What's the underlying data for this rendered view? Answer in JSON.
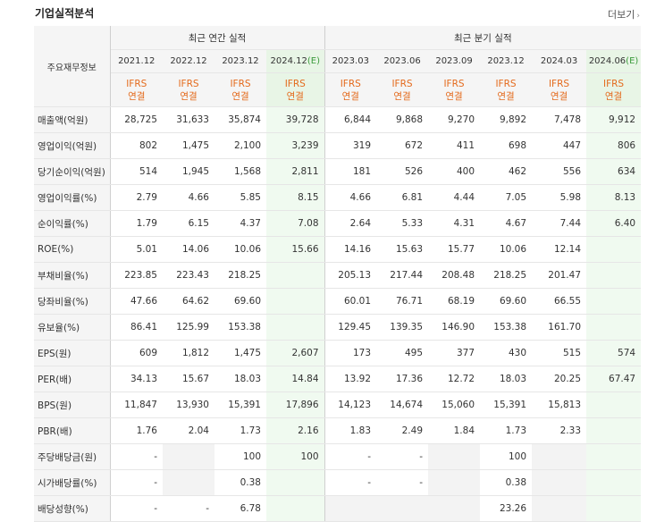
{
  "header": {
    "title": "기업실적분석",
    "more_label": "더보기"
  },
  "table": {
    "row_header_label": "주요재무정보",
    "group_annual": "최근 연간 실적",
    "group_quarter": "최근 분기 실적",
    "periods": [
      "2021.12",
      "2022.12",
      "2023.12",
      "2024.12",
      "2023.03",
      "2023.06",
      "2023.09",
      "2023.12",
      "2024.03",
      "2024.06"
    ],
    "estimate_suffix": "(E)",
    "ifrs_line1": "IFRS",
    "ifrs_line2": "연결",
    "rows": [
      {
        "label": "매출액(억원)",
        "values": [
          "28,725",
          "31,633",
          "35,874",
          "39,728",
          "6,844",
          "9,868",
          "9,270",
          "9,892",
          "7,478",
          "9,912"
        ]
      },
      {
        "label": "영업이익(억원)",
        "values": [
          "802",
          "1,475",
          "2,100",
          "3,239",
          "319",
          "672",
          "411",
          "698",
          "447",
          "806"
        ]
      },
      {
        "label": "당기순이익(억원)",
        "values": [
          "514",
          "1,945",
          "1,568",
          "2,811",
          "181",
          "526",
          "400",
          "462",
          "556",
          "634"
        ]
      },
      {
        "label": "영업이익률(%)",
        "values": [
          "2.79",
          "4.66",
          "5.85",
          "8.15",
          "4.66",
          "6.81",
          "4.44",
          "7.05",
          "5.98",
          "8.13"
        ]
      },
      {
        "label": "순이익률(%)",
        "values": [
          "1.79",
          "6.15",
          "4.37",
          "7.08",
          "2.64",
          "5.33",
          "4.31",
          "4.67",
          "7.44",
          "6.40"
        ]
      },
      {
        "label": "ROE(%)",
        "values": [
          "5.01",
          "14.06",
          "10.06",
          "15.66",
          "14.16",
          "15.63",
          "15.77",
          "10.06",
          "12.14",
          ""
        ]
      },
      {
        "label": "부채비율(%)",
        "values": [
          "223.85",
          "223.43",
          "218.25",
          "",
          "205.13",
          "217.44",
          "208.48",
          "218.25",
          "201.47",
          ""
        ]
      },
      {
        "label": "당좌비율(%)",
        "values": [
          "47.66",
          "64.62",
          "69.60",
          "",
          "60.01",
          "76.71",
          "68.19",
          "69.60",
          "66.55",
          ""
        ]
      },
      {
        "label": "유보율(%)",
        "values": [
          "86.41",
          "125.99",
          "153.38",
          "",
          "129.45",
          "139.35",
          "146.90",
          "153.38",
          "161.70",
          ""
        ]
      },
      {
        "label": "EPS(원)",
        "values": [
          "609",
          "1,812",
          "1,475",
          "2,607",
          "173",
          "495",
          "377",
          "430",
          "515",
          "574"
        ]
      },
      {
        "label": "PER(배)",
        "values": [
          "34.13",
          "15.67",
          "18.03",
          "14.84",
          "13.92",
          "17.36",
          "12.72",
          "18.03",
          "20.25",
          "67.47"
        ]
      },
      {
        "label": "BPS(원)",
        "values": [
          "11,847",
          "13,930",
          "15,391",
          "17,896",
          "14,123",
          "14,674",
          "15,060",
          "15,391",
          "15,813",
          ""
        ]
      },
      {
        "label": "PBR(배)",
        "values": [
          "1.76",
          "2.04",
          "1.73",
          "2.16",
          "1.83",
          "2.49",
          "1.84",
          "1.73",
          "2.33",
          ""
        ]
      },
      {
        "label": "주당배당금(원)",
        "values": [
          "-",
          "",
          "100",
          "100",
          "-",
          "-",
          "",
          "100",
          "",
          ""
        ]
      },
      {
        "label": "시가배당률(%)",
        "values": [
          "-",
          "",
          "0.38",
          "",
          "-",
          "-",
          "",
          "0.38",
          "",
          ""
        ]
      },
      {
        "label": "배당성향(%)",
        "values": [
          "-",
          "-",
          "6.78",
          "",
          "",
          "",
          "",
          "23.26",
          "",
          ""
        ]
      }
    ]
  }
}
